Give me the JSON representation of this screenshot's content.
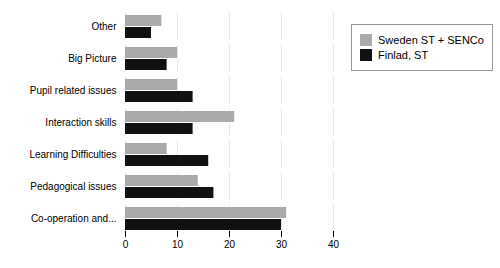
{
  "chart_data": {
    "type": "bar",
    "orientation": "horizontal",
    "categories": [
      "Co-operation and...",
      "Pedagogical issues",
      "Learning Difficulties",
      "Interaction skills",
      "Pupil related issues",
      "Big Picture",
      "Other"
    ],
    "series": [
      {
        "name": "Sweden ST + SENCo",
        "color": "#aaaaaa",
        "values": [
          31,
          14,
          8,
          21,
          10,
          10,
          7
        ]
      },
      {
        "name": "Finlad, ST",
        "color": "#111111",
        "values": [
          30,
          17,
          16,
          13,
          13,
          8,
          5
        ]
      }
    ],
    "xlim": [
      0,
      40
    ],
    "xticks": [
      0,
      10,
      20,
      30,
      40
    ],
    "grid": true,
    "legend": "right"
  }
}
